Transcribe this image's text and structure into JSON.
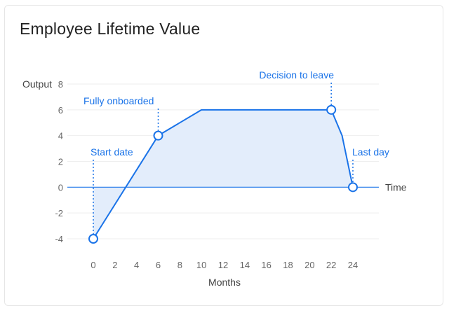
{
  "chart_data": {
    "type": "area",
    "title": "Employee Lifetime Value",
    "xlabel": "Months",
    "ylabel": "Output",
    "baseline_label": "Time",
    "xlim": [
      0,
      24
    ],
    "ylim": [
      -4,
      8
    ],
    "x_ticks": [
      0,
      2,
      4,
      6,
      8,
      10,
      12,
      14,
      16,
      18,
      20,
      22,
      24
    ],
    "y_ticks": [
      8,
      6,
      4,
      2,
      0,
      -2,
      -4
    ],
    "grid": true,
    "series": [
      {
        "x": [
          0,
          6,
          10,
          22,
          23,
          24
        ],
        "y": [
          -4,
          4,
          6,
          6,
          4,
          0
        ]
      }
    ],
    "annotations": [
      {
        "label": "Start date",
        "x": 0,
        "y": -4
      },
      {
        "label": "Fully onboarded",
        "x": 6,
        "y": 4
      },
      {
        "label": "Decision to leave",
        "x": 22,
        "y": 6
      },
      {
        "label": "Last day",
        "x": 24,
        "y": 0
      }
    ],
    "colors": {
      "line": "#1a73e8",
      "fill": "#e3edfb",
      "grid": "#eeeeee",
      "baseline": "#1a73e8"
    }
  }
}
